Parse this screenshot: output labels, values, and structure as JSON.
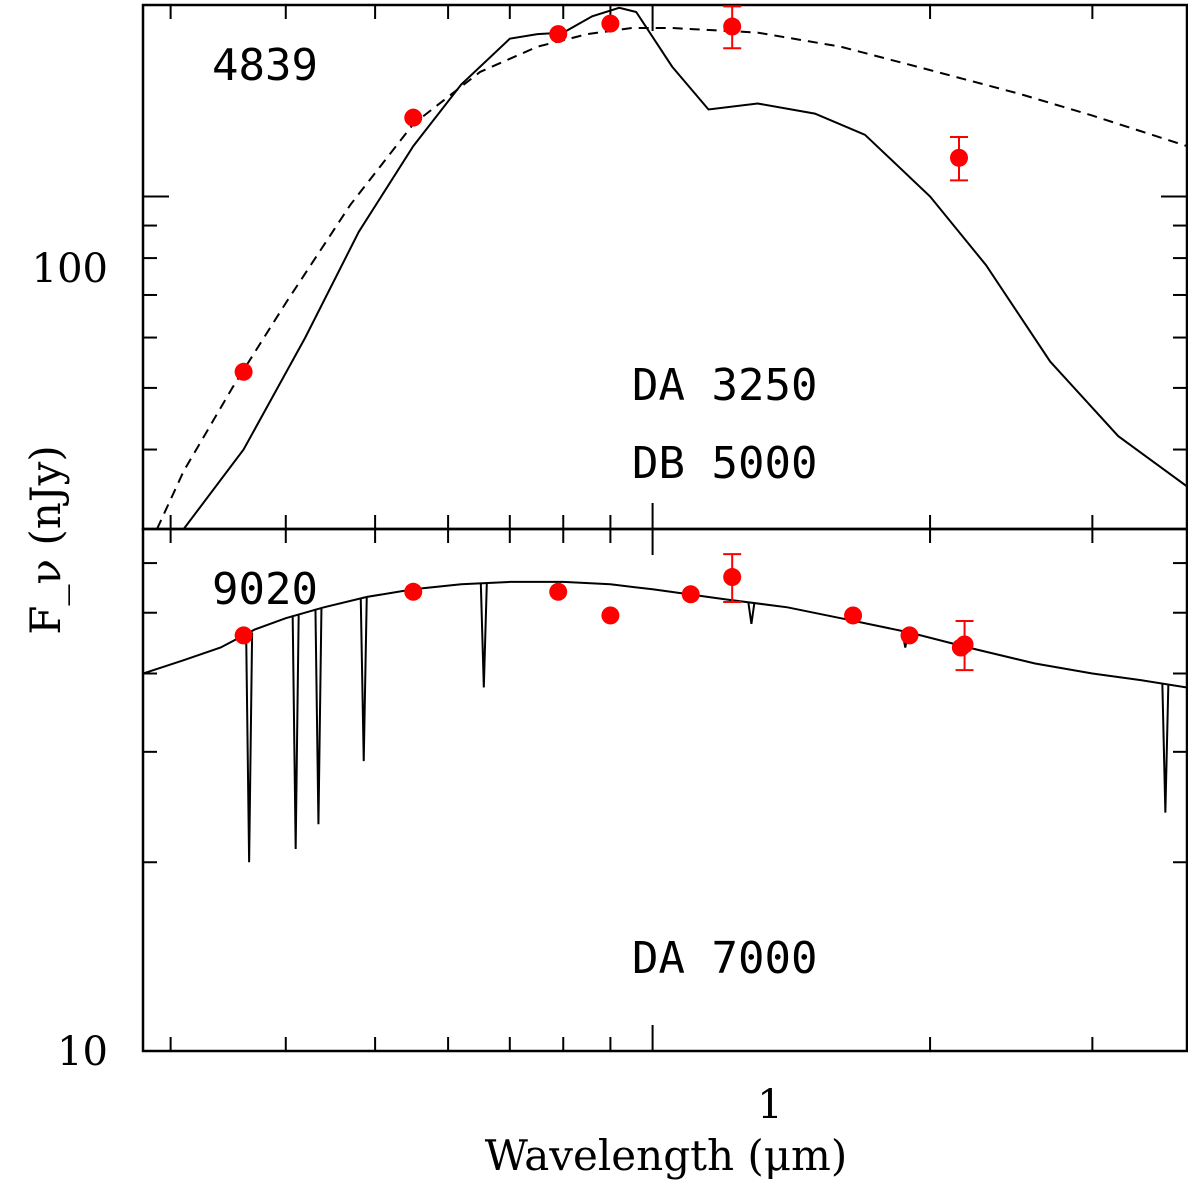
{
  "chart_data": {
    "type": "scatter",
    "xlabel": "Wavelength (μm)",
    "ylabel": "F_ν (nJy)",
    "x_scale": "log",
    "y_scale": "log",
    "xlim": [
      0.28,
      3.8
    ],
    "x_tick_labels": [
      {
        "value": 1,
        "label": "1"
      }
    ],
    "panels": [
      {
        "label": "4839",
        "ylim": [
          30,
          200
        ],
        "y_tick_labels": [
          {
            "value": 100,
            "label": "100"
          }
        ],
        "model_labels": [
          "DA 3250",
          "DB 5000"
        ],
        "points": [
          {
            "x": 0.36,
            "y": 53,
            "err": 1
          },
          {
            "x": 0.55,
            "y": 133,
            "err": 2
          },
          {
            "x": 0.79,
            "y": 180,
            "err": 2
          },
          {
            "x": 0.9,
            "y": 187,
            "err": 2
          },
          {
            "x": 1.22,
            "y": 185,
            "err": 14
          },
          {
            "x": 2.15,
            "y": 115,
            "err": 9
          }
        ],
        "models": [
          {
            "style": "solid",
            "points": [
              [
                0.31,
                30
              ],
              [
                0.36,
                40
              ],
              [
                0.42,
                60
              ],
              [
                0.48,
                88
              ],
              [
                0.55,
                120
              ],
              [
                0.62,
                150
              ],
              [
                0.7,
                177
              ],
              [
                0.75,
                180
              ],
              [
                0.8,
                181
              ],
              [
                0.86,
                192
              ],
              [
                0.92,
                198
              ],
              [
                0.96,
                195
              ],
              [
                1.05,
                160
              ],
              [
                1.15,
                137
              ],
              [
                1.3,
                140
              ],
              [
                1.5,
                135
              ],
              [
                1.7,
                125
              ],
              [
                2.0,
                100
              ],
              [
                2.3,
                78
              ],
              [
                2.7,
                55
              ],
              [
                3.2,
                42
              ],
              [
                3.8,
                35
              ]
            ]
          },
          {
            "style": "dashed",
            "points": [
              [
                0.29,
                30
              ],
              [
                0.31,
                37
              ],
              [
                0.35,
                50
              ],
              [
                0.4,
                68
              ],
              [
                0.47,
                97
              ],
              [
                0.55,
                130
              ],
              [
                0.65,
                157
              ],
              [
                0.75,
                172
              ],
              [
                0.85,
                180
              ],
              [
                0.95,
                184
              ],
              [
                1.05,
                184
              ],
              [
                1.3,
                181
              ],
              [
                1.6,
                172
              ],
              [
                2.0,
                158
              ],
              [
                2.5,
                145
              ],
              [
                3.0,
                134
              ],
              [
                3.8,
                120
              ]
            ]
          }
        ],
        "colors": {
          "points": "#ff0000",
          "models": "#000000"
        }
      },
      {
        "label": "9020",
        "ylim": [
          10,
          68
        ],
        "y_tick_labels": [
          {
            "value": 10,
            "label": "10"
          }
        ],
        "model_labels": [
          "DA 7000"
        ],
        "points": [
          {
            "x": 0.36,
            "y": 46,
            "err": 1
          },
          {
            "x": 0.55,
            "y": 54,
            "err": 1
          },
          {
            "x": 0.79,
            "y": 54,
            "err": 1
          },
          {
            "x": 0.9,
            "y": 49.5,
            "err": 1
          },
          {
            "x": 1.1,
            "y": 53.5,
            "err": 1
          },
          {
            "x": 1.22,
            "y": 57,
            "err": 5
          },
          {
            "x": 1.65,
            "y": 49.5,
            "err": 1
          },
          {
            "x": 1.9,
            "y": 46,
            "err": 1
          },
          {
            "x": 2.16,
            "y": 44,
            "err": 1
          },
          {
            "x": 2.18,
            "y": 44.5,
            "err": 4
          }
        ],
        "models": [
          {
            "style": "solid",
            "points": [
              [
                0.28,
                40
              ],
              [
                0.31,
                42
              ],
              [
                0.34,
                44
              ],
              [
                0.37,
                47
              ],
              [
                0.4,
                49
              ],
              [
                0.44,
                51
              ],
              [
                0.49,
                53
              ],
              [
                0.55,
                54.5
              ],
              [
                0.62,
                55.5
              ],
              [
                0.7,
                56
              ],
              [
                0.8,
                56
              ],
              [
                0.9,
                55.5
              ],
              [
                1.0,
                54.5
              ],
              [
                1.2,
                52.5
              ],
              [
                1.4,
                51
              ],
              [
                1.6,
                49
              ],
              [
                1.9,
                46.5
              ],
              [
                2.2,
                44
              ],
              [
                2.6,
                41.5
              ],
              [
                3.0,
                40
              ],
              [
                3.4,
                39
              ],
              [
                3.8,
                38
              ]
            ]
          }
        ],
        "absorption_lines": [
          {
            "x": 0.365,
            "depth_to": 20
          },
          {
            "x": 0.41,
            "depth_to": 21
          },
          {
            "x": 0.434,
            "depth_to": 23
          },
          {
            "x": 0.486,
            "depth_to": 29
          },
          {
            "x": 0.656,
            "depth_to": 38
          },
          {
            "x": 1.28,
            "depth_to": 48
          },
          {
            "x": 1.88,
            "depth_to": 44
          },
          {
            "x": 3.6,
            "depth_to": 24
          }
        ],
        "colors": {
          "points": "#ff0000",
          "models": "#000000"
        }
      }
    ]
  }
}
